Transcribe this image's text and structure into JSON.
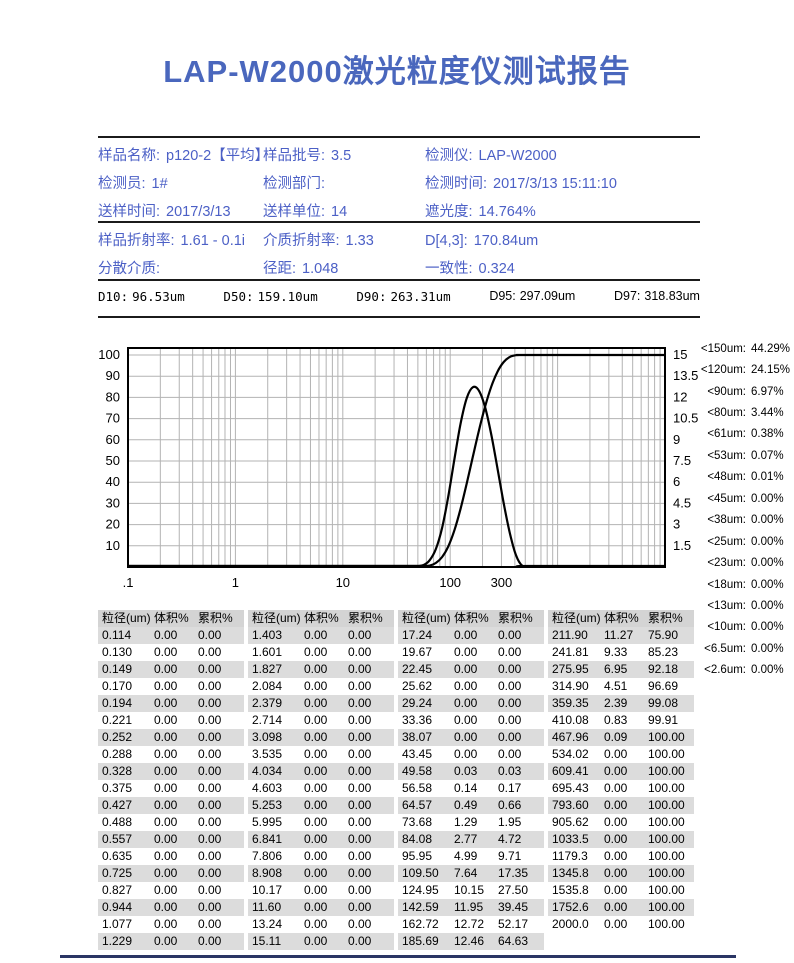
{
  "title": "LAP-W2000激光粒度仪测试报告",
  "colors": {
    "title": "#4a67bd",
    "accent": "#4c60c6",
    "table_header_bg": "#d4d4d4",
    "table_alt_bg": "#dcdcdc",
    "curve": "#000000",
    "grid": "#b3b3b3"
  },
  "info_top": {
    "items": [
      {
        "label": "样品名称:",
        "value": "p120-2【平均】"
      },
      {
        "label": "样品批号:",
        "value": "3.5"
      },
      {
        "label": "检测仪:",
        "value": "LAP-W2000"
      },
      {
        "label": "检测员:",
        "value": "1#"
      },
      {
        "label": "检测部门:",
        "value": ""
      },
      {
        "label": "检测时间:",
        "value": "2017/3/13 15:11:10"
      },
      {
        "label": "送样时间:",
        "value": "2017/3/13"
      },
      {
        "label": "送样单位:",
        "value": "14"
      },
      {
        "label": "遮光度:",
        "value": "14.764%"
      }
    ]
  },
  "info_mid": {
    "items": [
      {
        "label": "样品折射率:",
        "value": "1.61 - 0.1i"
      },
      {
        "label": "介质折射率:",
        "value": "1.33"
      },
      {
        "label": "D[4,3]:",
        "value": "170.84um"
      },
      {
        "label": "分散介质:",
        "value": ""
      },
      {
        "label": "径距:",
        "value": "1.048"
      },
      {
        "label": "一致性:",
        "value": "0.324"
      }
    ]
  },
  "d_values": {
    "items": [
      {
        "label": "D10:",
        "value": "96.53um"
      },
      {
        "label": "D50:",
        "value": "159.10um"
      },
      {
        "label": "D90:",
        "value": "263.31um"
      },
      {
        "label": "D95:",
        "value": "297.09um"
      },
      {
        "label": "D97:",
        "value": "318.83um"
      }
    ]
  },
  "chart_data": {
    "type": "line",
    "x_scale": "log",
    "x_min": 0.1,
    "x_max": 10000,
    "x_tick_labels": [
      ".1",
      "1",
      "10",
      "100",
      "300"
    ],
    "x_tick_values": [
      0.1,
      1,
      10,
      100,
      300
    ],
    "y_left": {
      "min": 0,
      "max": 100,
      "ticks": [
        10,
        20,
        30,
        40,
        50,
        60,
        70,
        80,
        90,
        100
      ]
    },
    "y_right": {
      "min": 0,
      "max": 15,
      "ticks": [
        1.5,
        3,
        4.5,
        6,
        7.5,
        9,
        10.5,
        12,
        13.5,
        15
      ]
    },
    "grid": true,
    "legend": "none",
    "series": [
      {
        "name": "累积%",
        "axis": "left",
        "points": [
          [
            0.1,
            0
          ],
          [
            38.07,
            0
          ],
          [
            43.45,
            0
          ],
          [
            49.58,
            0.03
          ],
          [
            56.58,
            0.17
          ],
          [
            64.57,
            0.66
          ],
          [
            73.68,
            1.95
          ],
          [
            84.08,
            4.72
          ],
          [
            95.95,
            9.71
          ],
          [
            109.5,
            17.35
          ],
          [
            124.95,
            27.5
          ],
          [
            142.59,
            39.45
          ],
          [
            162.72,
            52.17
          ],
          [
            185.69,
            64.63
          ],
          [
            211.9,
            75.9
          ],
          [
            241.81,
            85.23
          ],
          [
            275.95,
            92.18
          ],
          [
            314.9,
            96.69
          ],
          [
            359.35,
            99.08
          ],
          [
            410.08,
            99.91
          ],
          [
            467.96,
            100
          ],
          [
            534.02,
            100
          ],
          [
            10000,
            100
          ]
        ]
      },
      {
        "name": "体积%",
        "axis": "right",
        "points": [
          [
            0.1,
            0
          ],
          [
            38.07,
            0
          ],
          [
            43.45,
            0
          ],
          [
            49.58,
            0.03
          ],
          [
            56.58,
            0.14
          ],
          [
            64.57,
            0.49
          ],
          [
            73.68,
            1.29
          ],
          [
            84.08,
            2.77
          ],
          [
            95.95,
            4.99
          ],
          [
            109.5,
            7.64
          ],
          [
            124.95,
            10.15
          ],
          [
            142.59,
            11.95
          ],
          [
            162.72,
            12.72
          ],
          [
            185.69,
            12.46
          ],
          [
            211.9,
            11.27
          ],
          [
            241.81,
            9.33
          ],
          [
            275.95,
            6.95
          ],
          [
            314.9,
            4.51
          ],
          [
            359.35,
            2.39
          ],
          [
            410.08,
            0.83
          ],
          [
            467.96,
            0.09
          ],
          [
            534.02,
            0
          ],
          [
            10000,
            0
          ]
        ]
      }
    ]
  },
  "undersize": {
    "items": [
      {
        "label": "<150um:",
        "value": "44.29%"
      },
      {
        "label": "<120um:",
        "value": "24.15%"
      },
      {
        "label": "<90um:",
        "value": "6.97%"
      },
      {
        "label": "<80um:",
        "value": "3.44%"
      },
      {
        "label": "<61um:",
        "value": "0.38%"
      },
      {
        "label": "<53um:",
        "value": "0.07%"
      },
      {
        "label": "<48um:",
        "value": "0.01%"
      },
      {
        "label": "<45um:",
        "value": "0.00%"
      },
      {
        "label": "<38um:",
        "value": "0.00%"
      },
      {
        "label": "<25um:",
        "value": "0.00%"
      },
      {
        "label": "<23um:",
        "value": "0.00%"
      },
      {
        "label": "<18um:",
        "value": "0.00%"
      },
      {
        "label": "<13um:",
        "value": "0.00%"
      },
      {
        "label": "<10um:",
        "value": "0.00%"
      },
      {
        "label": "<6.5um:",
        "value": "0.00%"
      },
      {
        "label": "<2.6um:",
        "value": "0.00%"
      }
    ]
  },
  "table": {
    "headers": [
      "粒径(um)",
      "体积%",
      "累积%"
    ],
    "groups": [
      {
        "rows": [
          [
            "0.114",
            "0.00",
            "0.00"
          ],
          [
            "0.130",
            "0.00",
            "0.00"
          ],
          [
            "0.149",
            "0.00",
            "0.00"
          ],
          [
            "0.170",
            "0.00",
            "0.00"
          ],
          [
            "0.194",
            "0.00",
            "0.00"
          ],
          [
            "0.221",
            "0.00",
            "0.00"
          ],
          [
            "0.252",
            "0.00",
            "0.00"
          ],
          [
            "0.288",
            "0.00",
            "0.00"
          ],
          [
            "0.328",
            "0.00",
            "0.00"
          ],
          [
            "0.375",
            "0.00",
            "0.00"
          ],
          [
            "0.427",
            "0.00",
            "0.00"
          ],
          [
            "0.488",
            "0.00",
            "0.00"
          ],
          [
            "0.557",
            "0.00",
            "0.00"
          ],
          [
            "0.635",
            "0.00",
            "0.00"
          ],
          [
            "0.725",
            "0.00",
            "0.00"
          ],
          [
            "0.827",
            "0.00",
            "0.00"
          ],
          [
            "0.944",
            "0.00",
            "0.00"
          ],
          [
            "1.077",
            "0.00",
            "0.00"
          ],
          [
            "1.229",
            "0.00",
            "0.00"
          ]
        ]
      },
      {
        "rows": [
          [
            "1.403",
            "0.00",
            "0.00"
          ],
          [
            "1.601",
            "0.00",
            "0.00"
          ],
          [
            "1.827",
            "0.00",
            "0.00"
          ],
          [
            "2.084",
            "0.00",
            "0.00"
          ],
          [
            "2.379",
            "0.00",
            "0.00"
          ],
          [
            "2.714",
            "0.00",
            "0.00"
          ],
          [
            "3.098",
            "0.00",
            "0.00"
          ],
          [
            "3.535",
            "0.00",
            "0.00"
          ],
          [
            "4.034",
            "0.00",
            "0.00"
          ],
          [
            "4.603",
            "0.00",
            "0.00"
          ],
          [
            "5.253",
            "0.00",
            "0.00"
          ],
          [
            "5.995",
            "0.00",
            "0.00"
          ],
          [
            "6.841",
            "0.00",
            "0.00"
          ],
          [
            "7.806",
            "0.00",
            "0.00"
          ],
          [
            "8.908",
            "0.00",
            "0.00"
          ],
          [
            "10.17",
            "0.00",
            "0.00"
          ],
          [
            "11.60",
            "0.00",
            "0.00"
          ],
          [
            "13.24",
            "0.00",
            "0.00"
          ],
          [
            "15.11",
            "0.00",
            "0.00"
          ]
        ]
      },
      {
        "rows": [
          [
            "17.24",
            "0.00",
            "0.00"
          ],
          [
            "19.67",
            "0.00",
            "0.00"
          ],
          [
            "22.45",
            "0.00",
            "0.00"
          ],
          [
            "25.62",
            "0.00",
            "0.00"
          ],
          [
            "29.24",
            "0.00",
            "0.00"
          ],
          [
            "33.36",
            "0.00",
            "0.00"
          ],
          [
            "38.07",
            "0.00",
            "0.00"
          ],
          [
            "43.45",
            "0.00",
            "0.00"
          ],
          [
            "49.58",
            "0.03",
            "0.03"
          ],
          [
            "56.58",
            "0.14",
            "0.17"
          ],
          [
            "64.57",
            "0.49",
            "0.66"
          ],
          [
            "73.68",
            "1.29",
            "1.95"
          ],
          [
            "84.08",
            "2.77",
            "4.72"
          ],
          [
            "95.95",
            "4.99",
            "9.71"
          ],
          [
            "109.50",
            "7.64",
            "17.35"
          ],
          [
            "124.95",
            "10.15",
            "27.50"
          ],
          [
            "142.59",
            "11.95",
            "39.45"
          ],
          [
            "162.72",
            "12.72",
            "52.17"
          ],
          [
            "185.69",
            "12.46",
            "64.63"
          ]
        ]
      },
      {
        "rows": [
          [
            "211.90",
            "11.27",
            "75.90"
          ],
          [
            "241.81",
            "9.33",
            "85.23"
          ],
          [
            "275.95",
            "6.95",
            "92.18"
          ],
          [
            "314.90",
            "4.51",
            "96.69"
          ],
          [
            "359.35",
            "2.39",
            "99.08"
          ],
          [
            "410.08",
            "0.83",
            "99.91"
          ],
          [
            "467.96",
            "0.09",
            "100.00"
          ],
          [
            "534.02",
            "0.00",
            "100.00"
          ],
          [
            "609.41",
            "0.00",
            "100.00"
          ],
          [
            "695.43",
            "0.00",
            "100.00"
          ],
          [
            "793.60",
            "0.00",
            "100.00"
          ],
          [
            "905.62",
            "0.00",
            "100.00"
          ],
          [
            "1033.5",
            "0.00",
            "100.00"
          ],
          [
            "1179.3",
            "0.00",
            "100.00"
          ],
          [
            "1345.8",
            "0.00",
            "100.00"
          ],
          [
            "1535.8",
            "0.00",
            "100.00"
          ],
          [
            "1752.6",
            "0.00",
            "100.00"
          ],
          [
            "2000.0",
            "0.00",
            "100.00"
          ]
        ]
      }
    ]
  }
}
